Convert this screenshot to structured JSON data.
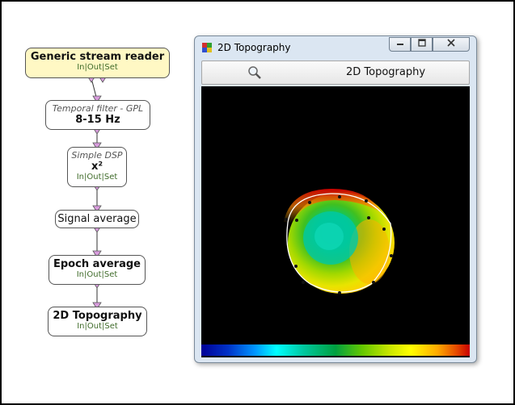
{
  "pipeline": {
    "generic_stream_reader": {
      "title": "Generic stream reader",
      "io_in": "In",
      "io_out": "Out",
      "io_set": "Set"
    },
    "temporal_filter": {
      "subtitle": "Temporal filter - GPL",
      "title": "8-15 Hz"
    },
    "simple_dsp": {
      "subtitle": "Simple DSP",
      "title": "x²",
      "io_in": "In",
      "io_out": "Out",
      "io_set": "Set"
    },
    "signal_average": {
      "title": "Signal average"
    },
    "epoch_average": {
      "title": "Epoch average",
      "io_in": "In",
      "io_out": "Out",
      "io_set": "Set"
    },
    "topography_box": {
      "title": "2D Topography",
      "io_in": "In",
      "io_out": "Out",
      "io_set": "Set"
    },
    "io_separator": "|"
  },
  "window": {
    "title": "2D Topography",
    "toolbar_label": "2D Topography",
    "minimize_icon": "minimize-icon",
    "maximize_icon": "maximize-icon",
    "close_icon": "close-icon",
    "zoom_icon": "magnifier-icon"
  },
  "colors": {
    "source_box": "#fff8c4",
    "connector": "#d79bdc",
    "io_text": "#3f6b2a",
    "plot_bg": "#000000",
    "colormap": [
      "#000096",
      "#0032c8",
      "#0096ff",
      "#00ffff",
      "#00c8a0",
      "#00a040",
      "#64c800",
      "#c8e600",
      "#ffff00",
      "#ffaa00",
      "#e64b00",
      "#c80000"
    ]
  }
}
